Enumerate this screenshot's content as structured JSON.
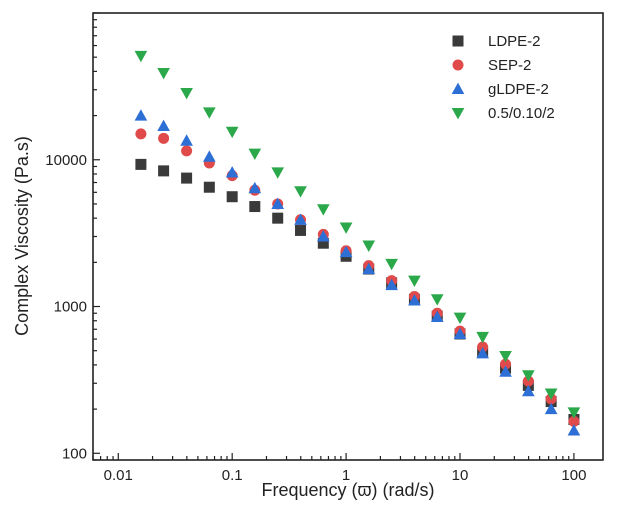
{
  "chart_data": {
    "type": "scatter",
    "xlabel": "Frequency (ϖ) (rad/s)",
    "ylabel": "Complex Viscosity (Pa.s)",
    "xscale": "log",
    "yscale": "log",
    "xlim": [
      0.006,
      180
    ],
    "ylim": [
      90,
      100000
    ],
    "xticks": [
      0.01,
      0.1,
      1,
      10,
      100
    ],
    "xtick_labels": [
      "0.01",
      "0.1",
      "1",
      "10",
      "100"
    ],
    "yticks": [
      100,
      1000,
      10000
    ],
    "ytick_labels": [
      "100",
      "1000",
      "10000"
    ],
    "grid": false,
    "legend_position": "top-right",
    "x": [
      0.0158,
      0.025,
      0.0398,
      0.063,
      0.1,
      0.158,
      0.251,
      0.398,
      0.631,
      1,
      1.58,
      2.51,
      3.98,
      6.31,
      10,
      15.8,
      25.1,
      39.8,
      63.1,
      100
    ],
    "series": [
      {
        "name": "LDPE-2",
        "marker": "square",
        "color": "#3a3a3a",
        "values": [
          9300,
          8400,
          7500,
          6500,
          5600,
          4800,
          4000,
          3300,
          2700,
          2200,
          1800,
          1450,
          1120,
          860,
          650,
          490,
          380,
          290,
          225,
          170
        ]
      },
      {
        "name": "SEP-2",
        "marker": "circle",
        "color": "#e04a4a",
        "values": [
          15000,
          14000,
          11500,
          9500,
          7800,
          6200,
          5000,
          3900,
          3100,
          2400,
          1900,
          1500,
          1170,
          900,
          680,
          530,
          405,
          310,
          235,
          165
        ]
      },
      {
        "name": "gLDPE-2",
        "marker": "triangle-up",
        "color": "#2e6fd6",
        "values": [
          20000,
          17000,
          13500,
          10500,
          8200,
          6400,
          5000,
          3900,
          3000,
          2350,
          1800,
          1400,
          1100,
          850,
          650,
          480,
          360,
          265,
          200,
          143
        ]
      },
      {
        "name": "0.5/0.10/2",
        "marker": "triangle-down",
        "color": "#2aa84a",
        "values": [
          51000,
          39000,
          28500,
          21000,
          15500,
          11000,
          8200,
          6100,
          4600,
          3450,
          2600,
          1950,
          1500,
          1120,
          840,
          620,
          460,
          340,
          255,
          190
        ]
      }
    ]
  }
}
